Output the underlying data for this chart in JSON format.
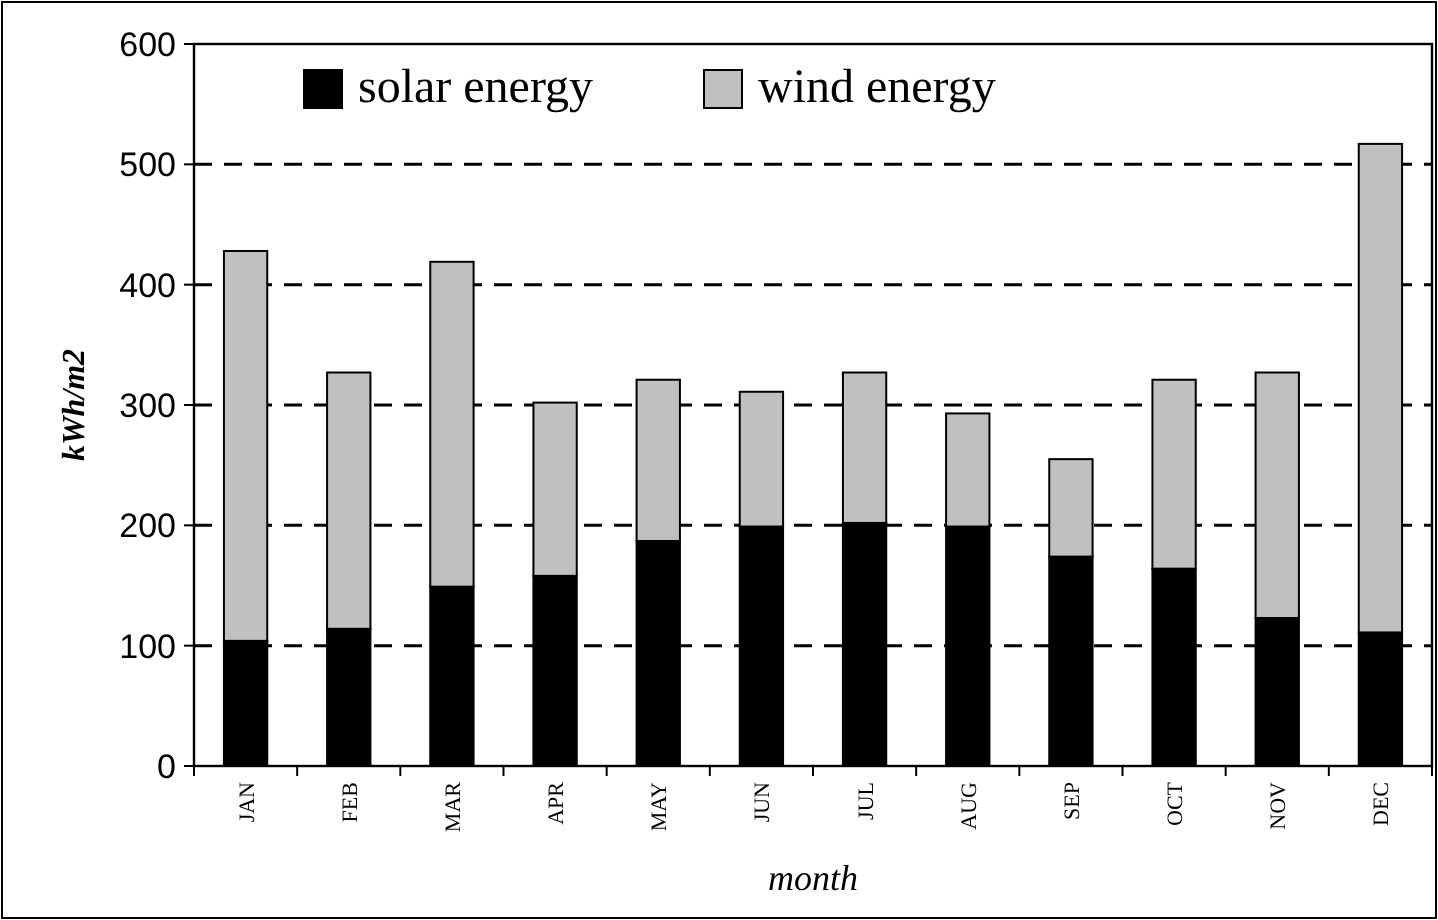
{
  "chart_data": {
    "type": "bar",
    "stacked": true,
    "xlabel": "month",
    "ylabel": "kWh/m2",
    "categories": [
      "JAN",
      "FEB",
      "MAR",
      "APR",
      "MAY",
      "JUN",
      "JUL",
      "AUG",
      "SEP",
      "OCT",
      "NOV",
      "DEC"
    ],
    "series": [
      {
        "name": "solar energy",
        "color": "#000000",
        "values": [
          104,
          114,
          149,
          158,
          187,
          199,
          202,
          199,
          174,
          164,
          123,
          111
        ]
      },
      {
        "name": "wind energy",
        "color": "#c0c0c0",
        "values": [
          324,
          213,
          270,
          144,
          134,
          112,
          125,
          94,
          81,
          157,
          204,
          406
        ]
      }
    ],
    "ylim": [
      0,
      600
    ],
    "yticks": [
      0,
      100,
      200,
      300,
      400,
      500,
      600
    ],
    "grid": "y",
    "legend": "top"
  }
}
